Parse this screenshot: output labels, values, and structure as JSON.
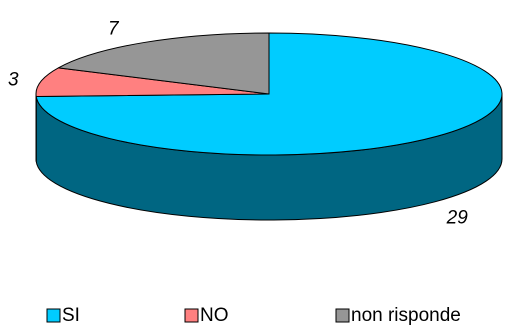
{
  "chart_data": {
    "type": "pie",
    "variant": "3d",
    "categories": [
      "SI",
      "NO",
      "non risponde"
    ],
    "values": [
      29,
      3,
      7
    ],
    "colors": {
      "SI": "#00ccff",
      "SI_side": "#006682",
      "NO": "#ff8080",
      "NO_side": "#8a4545",
      "non risponde": "#969696",
      "non risponde_side": "#505050",
      "outline": "#000000"
    },
    "data_labels": [
      "29",
      "3",
      "7"
    ],
    "legend": {
      "position": "bottom",
      "entries": [
        "SI",
        "NO",
        "non risponde"
      ]
    },
    "title": ""
  }
}
